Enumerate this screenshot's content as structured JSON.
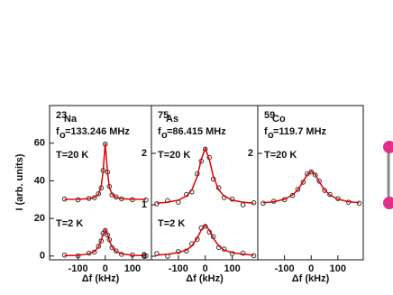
{
  "chart_data": [
    {
      "type": "scatter",
      "nucleus_mass": "23",
      "nucleus": "Na",
      "freq_symbol": "f",
      "freq_subscript": "o",
      "freq_text": "=133.246 MHz",
      "ylabel": "I (arb. units)",
      "xlabel": "Δf (kHz)",
      "xlim": [
        -205,
        170
      ],
      "xticks": [
        -100,
        0,
        100
      ],
      "ylim": [
        -2,
        80
      ],
      "yticks": [
        0,
        20,
        40,
        60
      ],
      "annotations": [
        "T=20 K",
        "T=2 K"
      ],
      "x": [
        -150,
        -100,
        -60,
        -40,
        -25,
        -15,
        -8,
        0,
        8,
        15,
        25,
        40,
        60,
        100,
        150
      ],
      "series": [
        {
          "mode": "markers",
          "color": "#333333",
          "values": [
            30.3,
            29.9,
            30.6,
            31.0,
            33.1,
            36.2,
            45.5,
            59.5,
            44.6,
            37.0,
            32.5,
            31.4,
            30.4,
            30.0,
            29.8
          ]
        },
        {
          "mode": "line",
          "color": "#e00000",
          "values": [
            30.1,
            30.2,
            30.5,
            31.2,
            32.8,
            36.6,
            45,
            60,
            45,
            36.6,
            32.8,
            31.2,
            30.5,
            30.2,
            30.1
          ]
        },
        {
          "mode": "markers",
          "color": "#333333",
          "values": [
            0.5,
            0.1,
            1.5,
            2.1,
            5.2,
            8.0,
            12.1,
            13.6,
            11.2,
            8.7,
            4.5,
            2.7,
            0.9,
            0.6,
            0.1
          ]
        },
        {
          "mode": "line",
          "color": "#e00000",
          "values": [
            0.2,
            0.4,
            1.2,
            2.4,
            4.8,
            8.3,
            11.7,
            14,
            11.7,
            8.3,
            4.8,
            2.4,
            1.2,
            0.4,
            0.2
          ]
        }
      ]
    },
    {
      "type": "scatter",
      "nucleus_mass": "75",
      "nucleus": "As",
      "freq_symbol": "f",
      "freq_subscript": "o",
      "freq_text": "=86.415 MHz",
      "xlabel": "Δf (kHz)",
      "xlim": [
        -200,
        195
      ],
      "xticks": [
        -100,
        0,
        100
      ],
      "ylim": [
        -0.07,
        2.93
      ],
      "yticks": [
        0,
        1,
        2
      ],
      "annotations": [
        "T=20 K",
        "T=2 K"
      ],
      "x": [
        -180,
        -140,
        -100,
        -70,
        -50,
        -30,
        -15,
        0,
        15,
        30,
        50,
        70,
        100,
        140,
        180
      ],
      "series": [
        {
          "mode": "markers",
          "color": "#333333",
          "values": [
            1.02,
            1.08,
            1.05,
            1.2,
            1.25,
            1.6,
            1.85,
            2.08,
            1.92,
            1.5,
            1.33,
            1.14,
            1.11,
            1.0,
            1.04
          ]
        },
        {
          "mode": "line",
          "color": "#e00000",
          "values": [
            1.03,
            1.05,
            1.09,
            1.17,
            1.29,
            1.55,
            1.88,
            2.1,
            1.88,
            1.55,
            1.29,
            1.17,
            1.09,
            1.05,
            1.03
          ]
        },
        {
          "mode": "markers",
          "color": "#333333",
          "values": [
            0.05,
            0.0,
            0.09,
            0.1,
            0.24,
            0.33,
            0.55,
            0.58,
            0.47,
            0.38,
            0.17,
            0.14,
            0.05,
            0.06,
            0.01
          ]
        },
        {
          "mode": "line",
          "color": "#e00000",
          "values": [
            0.02,
            0.04,
            0.07,
            0.12,
            0.2,
            0.35,
            0.51,
            0.6,
            0.51,
            0.35,
            0.2,
            0.12,
            0.07,
            0.04,
            0.02
          ]
        }
      ]
    },
    {
      "type": "scatter",
      "nucleus_mass": "59",
      "nucleus": "Co",
      "freq_symbol": "f",
      "freq_subscript": "o",
      "freq_text": "=119.7 MHz",
      "xlabel": "Δf (kHz)",
      "xlim": [
        -200,
        195
      ],
      "xticks": [
        -100,
        0,
        100
      ],
      "ylim": [
        -0.07,
        2.93
      ],
      "yticks": [
        2
      ],
      "annotations": [
        "T=20 K"
      ],
      "x": [
        -180,
        -140,
        -100,
        -70,
        -50,
        -30,
        -15,
        0,
        15,
        30,
        50,
        70,
        100,
        140,
        180
      ],
      "series": [
        {
          "mode": "markers",
          "color": "#333333",
          "values": [
            1.03,
            1.07,
            1.1,
            1.18,
            1.3,
            1.44,
            1.6,
            1.64,
            1.58,
            1.46,
            1.28,
            1.2,
            1.12,
            1.05,
            1.03
          ]
        },
        {
          "mode": "line",
          "color": "#e00000",
          "values": [
            1.04,
            1.06,
            1.11,
            1.19,
            1.29,
            1.45,
            1.59,
            1.65,
            1.59,
            1.45,
            1.29,
            1.19,
            1.11,
            1.06,
            1.04
          ]
        }
      ]
    }
  ]
}
